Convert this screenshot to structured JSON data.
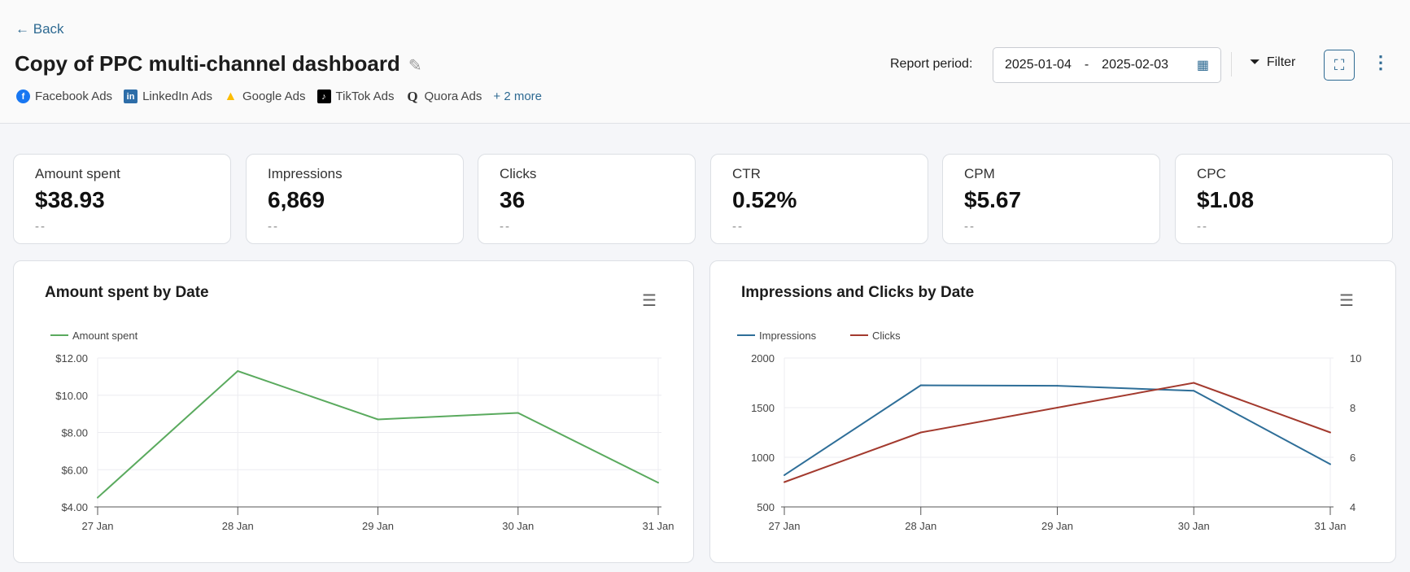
{
  "header": {
    "back": "Back",
    "title": "Copy of PPC multi-channel dashboard",
    "sources": [
      {
        "name": "Facebook Ads",
        "icon": "facebook-icon",
        "color": "#1877f2"
      },
      {
        "name": "LinkedIn Ads",
        "icon": "linkedin-icon",
        "color": "#2d6da8"
      },
      {
        "name": "Google Ads",
        "icon": "google-ads-icon",
        "color": "#fbbc04"
      },
      {
        "name": "TikTok Ads",
        "icon": "tiktok-icon",
        "color": "#000000"
      },
      {
        "name": "Quora Ads",
        "icon": "quora-icon",
        "color": "#333333"
      }
    ],
    "more": "+ 2 more",
    "report_period_label": "Report period:",
    "date_from": "2025-01-04",
    "date_sep": "-",
    "date_to": "2025-02-03",
    "filter": "Filter"
  },
  "kpis": [
    {
      "label": "Amount spent",
      "value": "$38.93",
      "delta": "--"
    },
    {
      "label": "Impressions",
      "value": "6,869",
      "delta": "--"
    },
    {
      "label": "Clicks",
      "value": "36",
      "delta": "--"
    },
    {
      "label": "CTR",
      "value": "0.52%",
      "delta": "--"
    },
    {
      "label": "CPM",
      "value": "$5.67",
      "delta": "--"
    },
    {
      "label": "CPC",
      "value": "$1.08",
      "delta": "--"
    }
  ],
  "chart_data": [
    {
      "type": "line",
      "title": "Amount spent by Date",
      "categories": [
        "27 Jan",
        "28 Jan",
        "29 Jan",
        "30 Jan",
        "31 Jan"
      ],
      "series": [
        {
          "name": "Amount spent",
          "color": "#5aaa5e",
          "values": [
            4.5,
            11.3,
            8.7,
            9.05,
            5.3
          ]
        }
      ],
      "ylim": [
        4,
        12
      ],
      "yticks": [
        "$4.00",
        "$6.00",
        "$8.00",
        "$10.00",
        "$12.00"
      ],
      "grid": true,
      "legend": "top-left"
    },
    {
      "type": "line",
      "title": "Impressions and Clicks by Date",
      "categories": [
        "27 Jan",
        "28 Jan",
        "29 Jan",
        "30 Jan",
        "31 Jan"
      ],
      "series": [
        {
          "name": "Impressions",
          "color": "#2e6e98",
          "axis": "left",
          "values": [
            820,
            1725,
            1720,
            1670,
            930
          ]
        },
        {
          "name": "Clicks",
          "color": "#a33a2e",
          "axis": "right",
          "values": [
            5,
            7,
            8,
            9,
            7
          ]
        }
      ],
      "ylim": [
        500,
        2000
      ],
      "yticks": [
        "500",
        "1000",
        "1500",
        "2000"
      ],
      "y2lim": [
        4,
        10
      ],
      "y2ticks": [
        "4",
        "6",
        "8",
        "10"
      ],
      "grid": true,
      "legend": "top-left"
    }
  ]
}
